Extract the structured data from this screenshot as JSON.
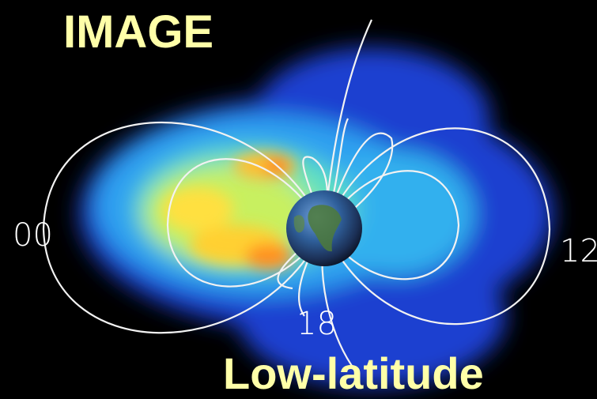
{
  "title": "IMAGE",
  "caption": "Low-latitude",
  "labels": {
    "left": "00",
    "right": "12",
    "bottom": "18"
  }
}
